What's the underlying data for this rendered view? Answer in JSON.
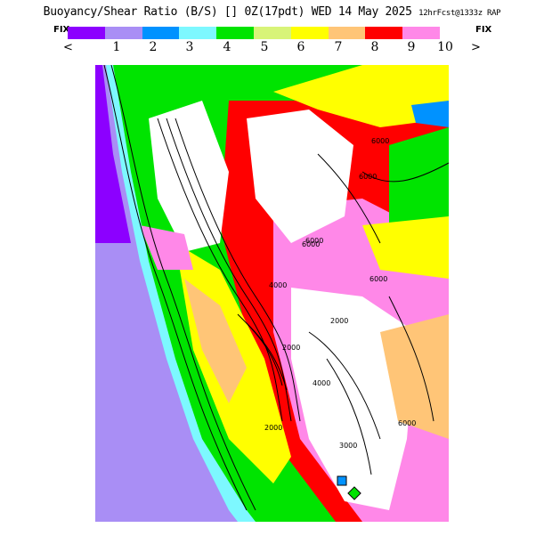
{
  "header": {
    "title_main": "Buoyancy/Shear Ratio (B/S) [] 0Z(17pdt) WED 14 May 2025",
    "title_run": "12hrFcst@1333z RAP"
  },
  "legend": {
    "fix_left": "FIX",
    "fix_right": "FIX",
    "prev_symbol": "<",
    "next_symbol": ">",
    "colors": [
      "#8c00ff",
      "#a98ef5",
      "#0092ff",
      "#7df8ff",
      "#00e400",
      "#d8f478",
      "#ffff00",
      "#ffc577",
      "#ff0000",
      "#ff88e8",
      "#ffffff"
    ],
    "tick_labels": [
      "1",
      "2",
      "3",
      "4",
      "5",
      "6",
      "7",
      "8",
      "9",
      "10"
    ]
  },
  "map": {
    "contour_labels": [
      "6000",
      "6000",
      "6000",
      "6000",
      "6000",
      "4000",
      "2000",
      "2000",
      "2000",
      "4000",
      "3000",
      "6000"
    ]
  }
}
